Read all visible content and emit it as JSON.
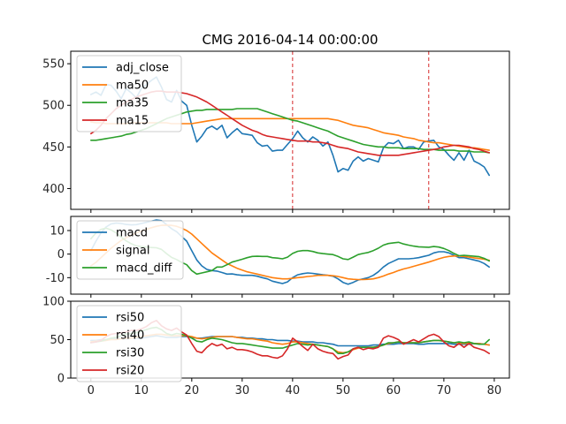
{
  "title": "CMG 2016-04-14 00:00:00",
  "chart_data": [
    {
      "type": "line",
      "panel": "price",
      "xlim": [
        -4,
        83
      ],
      "ylim": [
        375,
        565
      ],
      "xticks": [
        0,
        10,
        20,
        30,
        40,
        50,
        60,
        70,
        80
      ],
      "yticks": [
        400,
        450,
        500,
        550
      ],
      "vlines": [
        40,
        67
      ],
      "legend": "top-left",
      "series": [
        {
          "name": "adj_close",
          "color": "#1f77b4",
          "values": [
            513,
            516,
            512,
            525,
            524,
            517,
            508,
            520,
            515,
            509,
            520,
            525,
            530,
            534,
            522,
            507,
            504,
            518,
            505,
            500,
            476,
            456,
            463,
            472,
            475,
            471,
            476,
            461,
            467,
            472,
            466,
            465,
            464,
            455,
            451,
            452,
            445,
            446,
            446,
            453,
            460,
            469,
            461,
            456,
            462,
            458,
            451,
            456,
            440,
            420,
            424,
            422,
            433,
            438,
            433,
            436,
            434,
            432,
            449,
            455,
            454,
            458,
            448,
            450,
            450,
            447,
            456,
            457,
            458,
            450,
            447,
            440,
            434,
            443,
            434,
            446,
            433,
            430,
            426,
            416
          ]
        },
        {
          "name": "ma50",
          "color": "#ff7f0e",
          "values": [
            480,
            479,
            479,
            478,
            478,
            478,
            478,
            478,
            479,
            479,
            479,
            479,
            479,
            479,
            479,
            479,
            478,
            478,
            478,
            478,
            478,
            479,
            480,
            481,
            482,
            483,
            484,
            484,
            484,
            484,
            484,
            484,
            484,
            484,
            484,
            484,
            484,
            484,
            484,
            484,
            484,
            484,
            484,
            484,
            484,
            484,
            484,
            484,
            483,
            482,
            480,
            478,
            476,
            475,
            474,
            473,
            471,
            469,
            467,
            466,
            465,
            464,
            462,
            461,
            460,
            458,
            457,
            456,
            455,
            455,
            454,
            453,
            452,
            451,
            450,
            449,
            449,
            448,
            447,
            446
          ]
        },
        {
          "name": "ma35",
          "color": "#2ca02c",
          "values": [
            458,
            458,
            459,
            460,
            461,
            462,
            463,
            465,
            466,
            468,
            470,
            472,
            475,
            478,
            481,
            484,
            486,
            488,
            490,
            492,
            493,
            494,
            494,
            495,
            495,
            495,
            495,
            495,
            495,
            496,
            496,
            496,
            496,
            496,
            494,
            492,
            490,
            488,
            486,
            484,
            482,
            481,
            479,
            477,
            475,
            473,
            471,
            469,
            466,
            463,
            461,
            459,
            457,
            455,
            453,
            452,
            451,
            450,
            450,
            449,
            449,
            449,
            448,
            448,
            448,
            448,
            447,
            447,
            447,
            446,
            446,
            446,
            446,
            445,
            445,
            445,
            444,
            444,
            444,
            443
          ]
        },
        {
          "name": "ma15",
          "color": "#d62728",
          "values": [
            466,
            470,
            476,
            484,
            490,
            496,
            500,
            504,
            507,
            510,
            512,
            514,
            516,
            517,
            517,
            516,
            516,
            516,
            515,
            514,
            512,
            510,
            507,
            504,
            500,
            496,
            492,
            488,
            484,
            480,
            476,
            473,
            470,
            468,
            465,
            463,
            462,
            461,
            460,
            459,
            458,
            457,
            457,
            457,
            456,
            456,
            455,
            454,
            452,
            450,
            449,
            448,
            446,
            444,
            443,
            442,
            441,
            440,
            440,
            440,
            440,
            440,
            441,
            442,
            443,
            444,
            445,
            446,
            447,
            448,
            450,
            451,
            452,
            452,
            451,
            450,
            448,
            447,
            445,
            443
          ]
        }
      ]
    },
    {
      "type": "line",
      "panel": "macd",
      "xlim": [
        -4,
        83
      ],
      "ylim": [
        -17,
        16
      ],
      "xticks": [
        0,
        10,
        20,
        30,
        40,
        50,
        60,
        70,
        80
      ],
      "yticks": [
        -10,
        0,
        10
      ],
      "legend": "top-left",
      "series": [
        {
          "name": "macd",
          "color": "#1f77b4",
          "values": [
            1.5,
            5.5,
            9.0,
            11.5,
            12.8,
            13.2,
            13.0,
            12.6,
            12.4,
            12.5,
            13.0,
            13.5,
            14.0,
            14.5,
            14.2,
            12.5,
            10.8,
            9.5,
            7.5,
            5.5,
            1.5,
            -2.5,
            -5.0,
            -6.5,
            -7.0,
            -7.2,
            -7.8,
            -8.5,
            -8.4,
            -8.8,
            -9.0,
            -9.0,
            -9.0,
            -9.4,
            -10.0,
            -10.5,
            -11.5,
            -12.0,
            -12.5,
            -11.8,
            -10.0,
            -8.8,
            -8.3,
            -8.0,
            -8.2,
            -8.5,
            -8.8,
            -9.0,
            -9.4,
            -10.5,
            -12.0,
            -12.8,
            -12.0,
            -11.0,
            -10.5,
            -10.0,
            -9.0,
            -7.5,
            -5.5,
            -4.0,
            -3.0,
            -2.0,
            -2.0,
            -2.0,
            -1.8,
            -1.5,
            -1.0,
            -0.5,
            0.5,
            1.0,
            1.0,
            0.5,
            -0.5,
            -1.5,
            -1.5,
            -2.0,
            -2.5,
            -3.0,
            -4.0,
            -5.5
          ]
        },
        {
          "name": "signal",
          "color": "#ff7f0e",
          "values": [
            -5.0,
            -3.5,
            -1.5,
            0.5,
            2.5,
            4.2,
            5.8,
            7.0,
            8.0,
            9.0,
            9.8,
            10.5,
            11.2,
            11.8,
            12.2,
            12.3,
            12.2,
            11.8,
            11.0,
            10.0,
            8.5,
            6.5,
            4.5,
            2.5,
            0.5,
            -1.0,
            -2.5,
            -4.0,
            -5.0,
            -6.0,
            -6.8,
            -7.5,
            -8.0,
            -8.5,
            -9.0,
            -9.5,
            -10.0,
            -10.3,
            -10.5,
            -10.5,
            -10.3,
            -10.0,
            -9.8,
            -9.5,
            -9.3,
            -9.0,
            -9.0,
            -9.0,
            -9.2,
            -9.5,
            -10.0,
            -10.5,
            -10.7,
            -10.8,
            -10.8,
            -10.7,
            -10.5,
            -10.0,
            -9.3,
            -8.5,
            -7.8,
            -7.0,
            -6.3,
            -5.8,
            -5.2,
            -4.6,
            -4.0,
            -3.4,
            -2.7,
            -2.0,
            -1.4,
            -1.0,
            -0.8,
            -0.8,
            -1.0,
            -1.3,
            -1.6,
            -1.9,
            -2.2,
            -2.6
          ]
        },
        {
          "name": "macd_diff",
          "color": "#2ca02c",
          "values": [
            6.5,
            9.0,
            10.5,
            11.0,
            10.3,
            9.0,
            7.2,
            5.6,
            4.4,
            3.5,
            3.2,
            3.0,
            2.8,
            2.7,
            2.0,
            0.2,
            -1.4,
            -2.3,
            -3.5,
            -4.5,
            -7.0,
            -8.5,
            -8.0,
            -7.5,
            -7.0,
            -5.5,
            -5.5,
            -4.5,
            -3.4,
            -2.8,
            -2.2,
            -1.5,
            -1.0,
            -0.9,
            -1.0,
            -1.0,
            -1.5,
            -1.7,
            -2.0,
            -1.3,
            0.3,
            1.2,
            1.5,
            1.5,
            1.1,
            0.5,
            0.2,
            0.0,
            -0.2,
            -1.0,
            -2.0,
            -2.3,
            -1.3,
            -0.2,
            0.3,
            0.7,
            1.5,
            2.5,
            3.8,
            4.5,
            4.8,
            5.0,
            4.3,
            3.8,
            3.4,
            3.1,
            3.0,
            2.9,
            3.2,
            3.0,
            2.4,
            1.5,
            0.3,
            -0.7,
            -0.5,
            -0.7,
            -0.9,
            -1.1,
            -1.8,
            -2.9
          ]
        }
      ]
    },
    {
      "type": "line",
      "panel": "rsi",
      "xlim": [
        -4,
        83
      ],
      "ylim": [
        0,
        100
      ],
      "xticks": [
        0,
        10,
        20,
        30,
        40,
        50,
        60,
        70,
        80
      ],
      "yticks": [
        0,
        50,
        100
      ],
      "legend": "top-left",
      "series": [
        {
          "name": "rsi50",
          "color": "#1f77b4",
          "values": [
            49,
            49,
            50,
            50,
            51,
            51,
            51,
            51,
            52,
            52,
            52,
            53,
            54,
            55,
            54,
            53,
            53,
            53,
            54,
            54,
            53,
            52,
            52,
            53,
            54,
            54,
            54,
            54,
            54,
            53,
            53,
            52,
            52,
            51,
            51,
            50,
            50,
            49,
            49,
            49,
            48,
            48,
            47,
            47,
            47,
            46,
            46,
            45,
            44,
            42,
            42,
            42,
            42,
            42,
            42,
            42,
            43,
            43,
            44,
            44,
            44,
            45,
            45,
            45,
            45,
            44,
            44,
            45,
            45,
            45,
            45,
            45,
            44,
            44,
            44,
            44,
            45,
            45,
            44,
            43
          ]
        },
        {
          "name": "rsi40",
          "color": "#ff7f0e",
          "values": [
            47,
            48,
            48,
            49,
            50,
            50,
            51,
            52,
            52,
            53,
            54,
            55,
            56,
            57,
            57,
            56,
            55,
            55,
            55,
            55,
            54,
            52,
            51,
            52,
            53,
            54,
            54,
            54,
            54,
            53,
            52,
            51,
            51,
            50,
            49,
            48,
            46,
            45,
            44,
            45,
            47,
            47,
            46,
            45,
            44,
            43,
            42,
            41,
            38,
            34,
            33,
            34,
            37,
            39,
            40,
            40,
            40,
            41,
            43,
            45,
            46,
            47,
            46,
            46,
            46,
            46,
            47,
            48,
            49,
            49,
            48,
            47,
            46,
            46,
            45,
            46,
            45,
            45,
            44,
            43
          ]
        },
        {
          "name": "rsi30",
          "color": "#2ca02c",
          "values": [
            46,
            47,
            48,
            50,
            52,
            53,
            55,
            57,
            58,
            59,
            61,
            63,
            65,
            66,
            63,
            58,
            56,
            58,
            57,
            55,
            52,
            48,
            47,
            50,
            52,
            51,
            50,
            48,
            46,
            45,
            45,
            44,
            43,
            42,
            41,
            40,
            39,
            39,
            39,
            41,
            43,
            45,
            44,
            43,
            44,
            43,
            42,
            41,
            38,
            32,
            32,
            34,
            38,
            40,
            40,
            40,
            40,
            41,
            43,
            46,
            46,
            47,
            46,
            46,
            46,
            46,
            47,
            48,
            49,
            49,
            48,
            47,
            46,
            47,
            46,
            47,
            45,
            44,
            44,
            50
          ]
        },
        {
          "name": "rsi20",
          "color": "#d62728",
          "values": [
            46,
            47,
            49,
            54,
            57,
            58,
            59,
            60,
            62,
            62,
            64,
            67,
            72,
            75,
            68,
            64,
            62,
            65,
            60,
            56,
            45,
            35,
            33,
            40,
            45,
            42,
            44,
            38,
            40,
            37,
            37,
            36,
            34,
            31,
            29,
            29,
            27,
            26,
            29,
            38,
            52,
            47,
            41,
            36,
            44,
            38,
            35,
            33,
            32,
            25,
            28,
            30,
            38,
            40,
            37,
            39,
            38,
            40,
            52,
            55,
            53,
            50,
            44,
            47,
            50,
            47,
            51,
            55,
            57,
            54,
            47,
            42,
            40,
            45,
            40,
            45,
            40,
            38,
            36,
            32
          ]
        }
      ]
    }
  ]
}
